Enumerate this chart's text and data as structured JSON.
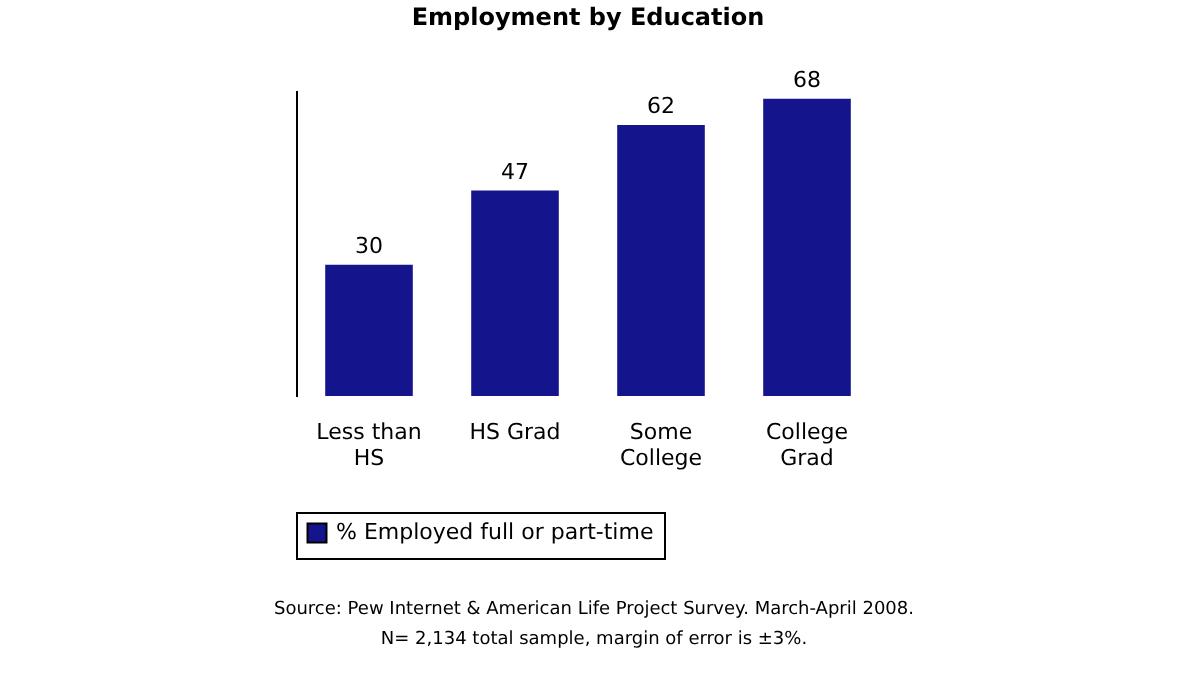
{
  "chart_data": {
    "type": "bar",
    "title": "Employment by Education",
    "categories": [
      "Less than HS",
      "HS Grad",
      "Some College",
      "College Grad"
    ],
    "series": [
      {
        "name": "% Employed full or part-time",
        "color": "#14148c",
        "values": [
          30,
          47,
          62,
          68
        ]
      }
    ],
    "data_labels": true,
    "legend": "bottom",
    "grid": false,
    "annotations": [
      "Source:  Pew Internet & American Life Project Survey. March-April 2008.",
      "N= 2,134 total sample, margin of error is ±3%."
    ]
  }
}
